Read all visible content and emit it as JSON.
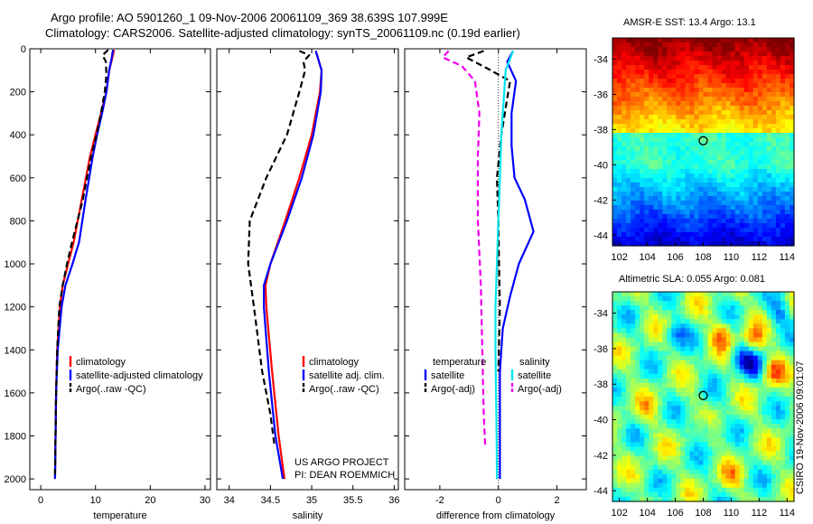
{
  "header": {
    "title_line1": "Argo profile: AO 5901260_1 09-Nov-2006 20061109_369 38.639S 107.999E",
    "title_line2": "Climatology: CARS2006. Satellite-adjusted climatology: synTS_20061109.nc (0.19d earlier)"
  },
  "credits": {
    "line1": "US ARGO PROJECT",
    "line2": "PI: DEAN ROEMMICH",
    "stamp": "CSIRO 19-Nov-2006 09:01:07"
  },
  "colors": {
    "climatology": "#ff0000",
    "satellite": "#0000ff",
    "argo": "#000000",
    "sal_satellite": "#00e5ee",
    "sal_argo": "#ee00ee"
  },
  "chart_data": [
    {
      "type": "line",
      "panel": "temperature",
      "xlabel": "temperature",
      "ylabel": "",
      "xlim": [
        -2,
        31
      ],
      "ylim": [
        2050,
        0
      ],
      "xticks": [
        0,
        10,
        20,
        30
      ],
      "yticks": [
        0,
        200,
        400,
        600,
        800,
        1000,
        1200,
        1400,
        1600,
        1800,
        2000
      ],
      "legend": [
        "climatology",
        "satellite-adjusted climatology",
        "Argo(..raw -QC)"
      ],
      "legend_location": "lower-right",
      "series": [
        {
          "name": "climatology",
          "style": "solid",
          "color": "climatology",
          "x": [
            13.4,
            13.0,
            12.5,
            12.0,
            11.0,
            10.0,
            9.0,
            7.5,
            6.0,
            5.0,
            4.0,
            3.5,
            3.0,
            2.8,
            2.6
          ],
          "y": [
            5,
            50,
            100,
            200,
            300,
            400,
            500,
            700,
            900,
            1000,
            1100,
            1200,
            1400,
            1600,
            2000
          ]
        },
        {
          "name": "satellite-adjusted climatology",
          "style": "solid",
          "color": "satellite",
          "x": [
            13.2,
            12.9,
            12.5,
            12.0,
            11.2,
            10.3,
            9.5,
            8.2,
            7.0,
            5.8,
            4.5,
            3.8,
            3.1,
            2.8,
            2.6
          ],
          "y": [
            5,
            50,
            100,
            200,
            300,
            400,
            500,
            700,
            900,
            1000,
            1100,
            1200,
            1400,
            1600,
            2000
          ]
        },
        {
          "name": "Argo(..raw -QC)",
          "style": "dashed",
          "color": "argo",
          "x": [
            12.3,
            11.3,
            11.9,
            12.0,
            11.7,
            11.0,
            10.2,
            9.2,
            7.7,
            5.7,
            4.8,
            4.0,
            3.4,
            3.0,
            2.8,
            2.6
          ],
          "y": [
            5,
            30,
            60,
            120,
            200,
            300,
            400,
            500,
            700,
            900,
            1000,
            1100,
            1200,
            1400,
            1600,
            1980
          ]
        }
      ]
    },
    {
      "type": "line",
      "panel": "salinity",
      "xlabel": "salinity",
      "ylabel": "",
      "xlim": [
        33.85,
        36.05
      ],
      "ylim": [
        2050,
        0
      ],
      "xticks": [
        34,
        34.5,
        35,
        35.5,
        36
      ],
      "yticks": [
        0,
        200,
        400,
        600,
        800,
        1000,
        1200,
        1400,
        1600,
        1800,
        2000
      ],
      "legend": [
        "climatology",
        "satellite adj. clim.",
        "Argo(..raw -QC)"
      ],
      "legend_location": "lower-right",
      "series": [
        {
          "name": "climatology",
          "style": "solid",
          "color": "climatology",
          "x": [
            35.05,
            35.12,
            35.1,
            35.0,
            34.85,
            34.68,
            34.5,
            34.44,
            34.45,
            34.52,
            34.6,
            34.67
          ],
          "y": [
            10,
            100,
            200,
            400,
            600,
            800,
            1000,
            1100,
            1200,
            1500,
            1800,
            2000
          ]
        },
        {
          "name": "satellite adj. clim.",
          "style": "solid",
          "color": "satellite",
          "x": [
            35.05,
            35.12,
            35.11,
            35.02,
            34.88,
            34.7,
            34.5,
            34.42,
            34.42,
            34.48,
            34.56,
            34.65
          ],
          "y": [
            10,
            100,
            200,
            400,
            600,
            800,
            1000,
            1100,
            1200,
            1500,
            1800,
            2000
          ]
        },
        {
          "name": "Argo(..raw -QC)",
          "style": "dashed",
          "color": "argo",
          "x": [
            34.85,
            34.97,
            34.9,
            34.92,
            34.85,
            34.7,
            34.45,
            34.25,
            34.23,
            34.3,
            34.4,
            34.5,
            34.55
          ],
          "y": [
            10,
            30,
            60,
            100,
            200,
            400,
            600,
            800,
            1000,
            1200,
            1500,
            1700,
            1850
          ]
        }
      ]
    },
    {
      "type": "line",
      "panel": "difference from climatology",
      "xlabel": "difference from climatology",
      "ylabel": "",
      "xlim": [
        -3.2,
        3.0
      ],
      "ylim": [
        2050,
        0
      ],
      "xticks": [
        -2,
        0,
        2
      ],
      "yticks": [
        0,
        200,
        400,
        600,
        800,
        1000,
        1200,
        1400,
        1600,
        1800,
        2000
      ],
      "legend": [
        "temperature",
        "satellite",
        "Argo(-adj)",
        "salinity",
        "satellite",
        "Argo(-adj)"
      ],
      "legend_location": "lower-right",
      "series": [
        {
          "name": "temperature satellite",
          "style": "solid",
          "color": "satellite",
          "x": [
            0.5,
            0.3,
            0.6,
            0.45,
            0.45,
            0.55,
            0.9,
            1.2,
            0.7,
            0.4,
            0.15,
            0.05,
            0.05,
            0.05
          ],
          "y": [
            10,
            60,
            150,
            300,
            450,
            600,
            700,
            850,
            1000,
            1150,
            1300,
            1500,
            1800,
            2000
          ]
        },
        {
          "name": "temperature Argo(-adj)",
          "style": "dashed",
          "color": "argo",
          "x": [
            -0.5,
            -1.1,
            -0.4,
            0.4,
            0.3,
            0.1,
            -0.05,
            0.0,
            0.02,
            0.05,
            0.0
          ],
          "y": [
            10,
            40,
            90,
            150,
            230,
            400,
            600,
            800,
            1000,
            1200,
            1500
          ]
        },
        {
          "name": "salinity satellite",
          "style": "solid",
          "color": "sal_satellite",
          "x": [
            0.5,
            0.25,
            0.2,
            0.1,
            0.05,
            0.0,
            -0.05,
            -0.1,
            -0.1,
            -0.08,
            -0.06,
            -0.05
          ],
          "y": [
            10,
            100,
            200,
            400,
            600,
            800,
            1000,
            1200,
            1400,
            1600,
            1800,
            2000
          ]
        },
        {
          "name": "salinity Argo(-adj)",
          "style": "dashed",
          "color": "sal_argo",
          "x": [
            -1.7,
            -1.9,
            -1.25,
            -0.8,
            -0.65,
            -0.7,
            -0.7,
            -0.6,
            -0.55,
            -0.5,
            -0.45
          ],
          "y": [
            10,
            40,
            80,
            150,
            300,
            500,
            800,
            1100,
            1400,
            1700,
            1850
          ]
        }
      ]
    },
    {
      "type": "heatmap",
      "panel": "sst-map",
      "title": "AMSR-E SST: 13.4 Argo: 13.1",
      "xlim": [
        101.5,
        114.5
      ],
      "ylim": [
        -44.6,
        -32.8
      ],
      "xticks": [
        102,
        104,
        106,
        108,
        110,
        112,
        114
      ],
      "yticks": [
        -34,
        -36,
        -38,
        -40,
        -42,
        -44
      ],
      "marker": {
        "lon": 107.999,
        "lat": -38.639
      }
    },
    {
      "type": "heatmap",
      "panel": "sla-map",
      "title": "Altimetric SLA: 0.055 Argo: 0.081",
      "xlim": [
        101.5,
        114.5
      ],
      "ylim": [
        -44.6,
        -32.8
      ],
      "xticks": [
        102,
        104,
        106,
        108,
        110,
        112,
        114
      ],
      "yticks": [
        -34,
        -36,
        -38,
        -40,
        -42,
        -44
      ],
      "marker": {
        "lon": 107.999,
        "lat": -38.639
      }
    }
  ]
}
